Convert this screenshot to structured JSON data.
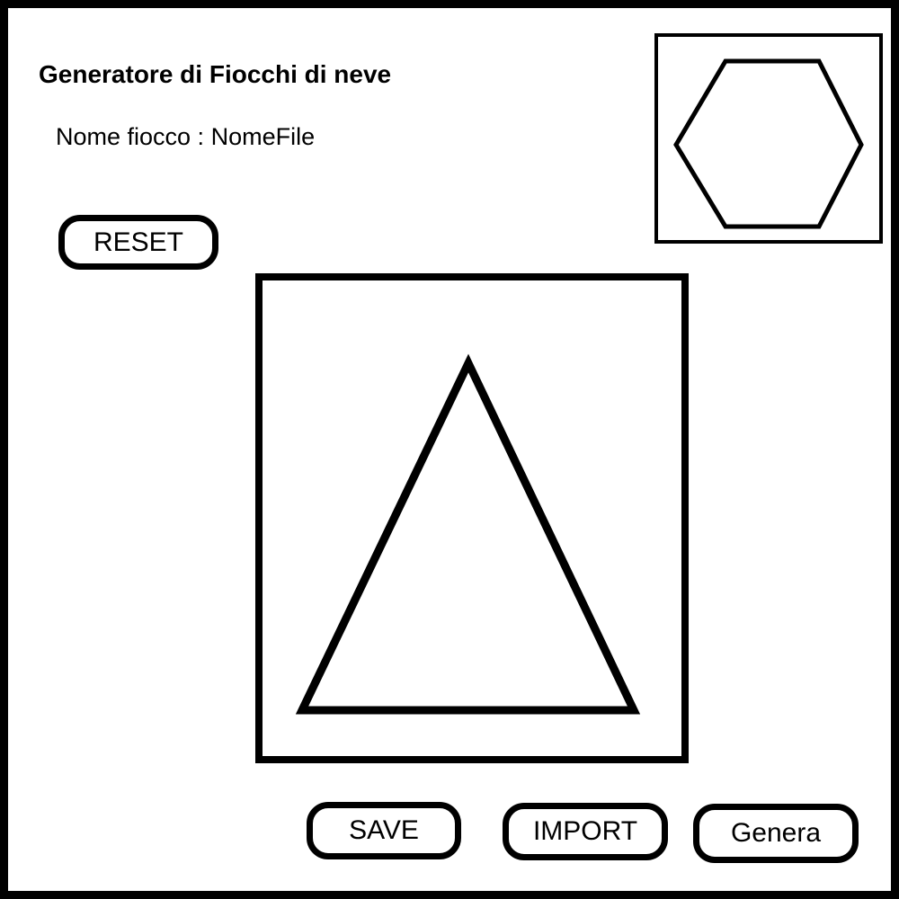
{
  "app": {
    "title": "Generatore di Fiocchi di neve"
  },
  "file": {
    "label": "Nome fiocco :",
    "value": "NomeFile"
  },
  "buttons": {
    "reset": "RESET",
    "save": "SAVE",
    "import": "IMPORT",
    "generate": "Genera"
  },
  "icons": {
    "preview_shape": "hexagon-icon",
    "editor_shape": "triangle-icon"
  },
  "colors": {
    "foreground": "#000000",
    "background": "#ffffff"
  }
}
